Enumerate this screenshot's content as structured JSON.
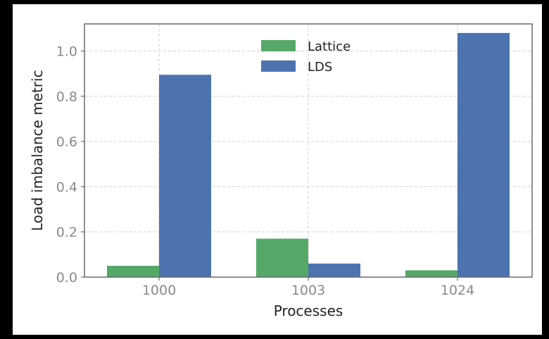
{
  "chart_data": {
    "type": "bar",
    "title": "",
    "xlabel": "Processes",
    "ylabel": "Load imbalance metric",
    "categories": [
      "1000",
      "1003",
      "1024"
    ],
    "series": [
      {
        "name": "Lattice",
        "color": "#55a868",
        "values": [
          0.05,
          0.17,
          0.03
        ]
      },
      {
        "name": "LDS",
        "color": "#4c72b0",
        "values": [
          0.895,
          0.06,
          1.08
        ]
      }
    ],
    "ylim": [
      0,
      1.12
    ],
    "yticks": [
      "0.0",
      "0.2",
      "0.4",
      "0.6",
      "0.8",
      "1.0"
    ],
    "grid": true,
    "legend_position": "top-center"
  }
}
